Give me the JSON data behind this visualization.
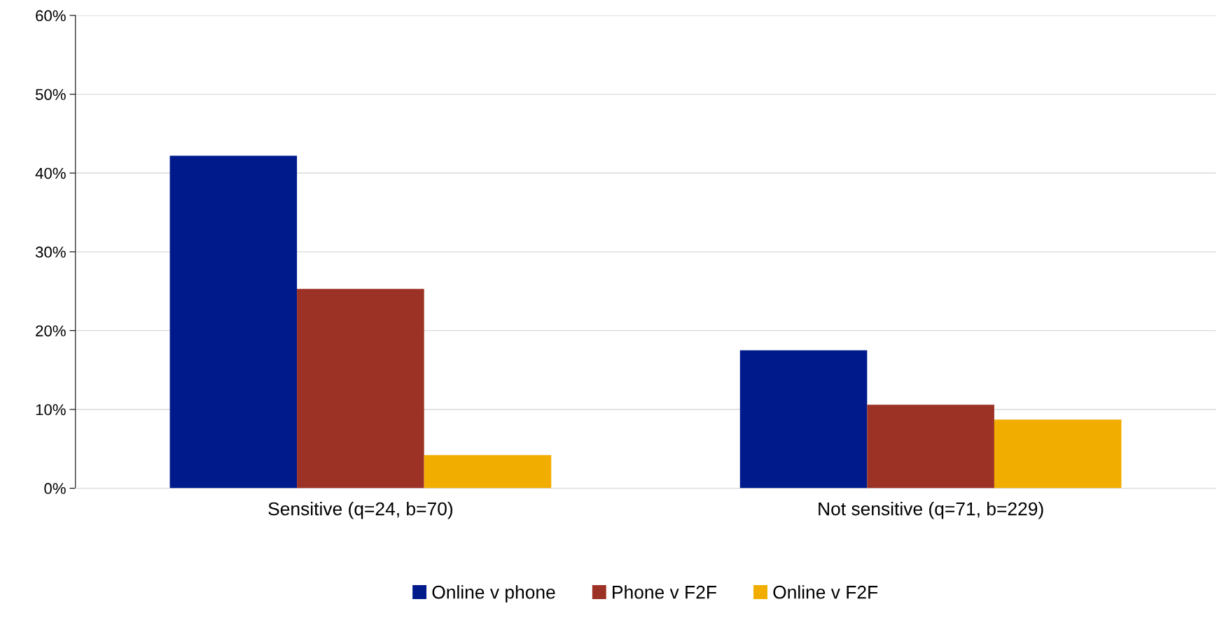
{
  "chart_data": {
    "type": "bar",
    "categories": [
      "Sensitive (q=24, b=70)",
      "Not sensitive (q=71, b=229)"
    ],
    "series": [
      {
        "name": "Online v phone",
        "color": "#001a8c",
        "values": [
          42.2,
          17.5
        ]
      },
      {
        "name": "Phone v F2F",
        "color": "#9c3125",
        "values": [
          25.3,
          10.6
        ]
      },
      {
        "name": "Online v F2F",
        "color": "#f2ae00",
        "values": [
          4.2,
          8.7
        ]
      }
    ],
    "ylim": [
      0,
      60
    ],
    "yticks": [
      {
        "value": 0,
        "label": "0%"
      },
      {
        "value": 10,
        "label": "10%"
      },
      {
        "value": 20,
        "label": "20%"
      },
      {
        "value": 30,
        "label": "30%"
      },
      {
        "value": 40,
        "label": "40%"
      },
      {
        "value": 50,
        "label": "50%"
      },
      {
        "value": 60,
        "label": "60%"
      }
    ],
    "grid": "y",
    "legend": "bottom"
  }
}
